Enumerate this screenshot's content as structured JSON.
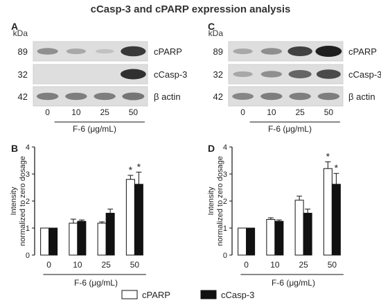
{
  "title": "cCasp-3 and cPARP expression analysis",
  "panel_labels": {
    "A": "A",
    "B": "B",
    "C": "C",
    "D": "D"
  },
  "blots": [
    {
      "unit": "kDa",
      "rows": [
        {
          "mw": "89",
          "name": "cPARP",
          "intensities": [
            0.35,
            0.2,
            0.05,
            0.85
          ]
        },
        {
          "mw": "32",
          "name": "cCasp-3",
          "intensities": [
            0.0,
            0.0,
            0.0,
            0.9
          ]
        },
        {
          "mw": "42",
          "name": "β actin",
          "intensities": [
            0.45,
            0.45,
            0.45,
            0.5
          ]
        }
      ],
      "lane_labels": [
        "0",
        "10",
        "25",
        "50"
      ],
      "xlabel": "F-6 (μg/mL)"
    },
    {
      "unit": "kDa",
      "rows": [
        {
          "mw": "89",
          "name": "cPARP",
          "intensities": [
            0.2,
            0.35,
            0.8,
            1.0
          ]
        },
        {
          "mw": "32",
          "name": "cCasp-3",
          "intensities": [
            0.2,
            0.35,
            0.6,
            0.75
          ]
        },
        {
          "mw": "42",
          "name": "β actin",
          "intensities": [
            0.4,
            0.45,
            0.45,
            0.45
          ]
        }
      ],
      "lane_labels": [
        "0",
        "10",
        "25",
        "50"
      ],
      "xlabel": "F-6 (μg/mL)"
    }
  ],
  "chart_data": [
    {
      "type": "bar",
      "panel": "B",
      "categories": [
        "0",
        "10",
        "25",
        "50"
      ],
      "series": [
        {
          "name": "cPARP",
          "values": [
            1.0,
            1.18,
            1.18,
            2.8
          ],
          "errors": [
            0.0,
            0.15,
            0.05,
            0.15
          ],
          "star": [
            false,
            false,
            false,
            true
          ]
        },
        {
          "name": "cCasp-3",
          "values": [
            1.0,
            1.25,
            1.55,
            2.62
          ],
          "errors": [
            0.0,
            0.05,
            0.15,
            0.45
          ],
          "star": [
            false,
            false,
            false,
            true
          ]
        }
      ],
      "xlabel": "F-6 (μg/mL)",
      "ylabel": "Intensity\nnormalized to zero dosage",
      "ylim": [
        0,
        4
      ],
      "yticks": [
        "0",
        "1",
        "2",
        "3",
        "4"
      ]
    },
    {
      "type": "bar",
      "panel": "D",
      "categories": [
        "0",
        "10",
        "25",
        "50"
      ],
      "series": [
        {
          "name": "cPARP",
          "values": [
            1.0,
            1.32,
            2.03,
            3.2
          ],
          "errors": [
            0.0,
            0.06,
            0.15,
            0.25
          ],
          "star": [
            false,
            false,
            false,
            true
          ]
        },
        {
          "name": "cCasp-3",
          "values": [
            1.0,
            1.25,
            1.55,
            2.62
          ],
          "errors": [
            0.0,
            0.05,
            0.15,
            0.4
          ],
          "star": [
            false,
            false,
            false,
            true
          ]
        }
      ],
      "xlabel": "F-6 (μg/mL)",
      "ylabel": "Intensity\nnormalized to zero dosage",
      "ylim": [
        0,
        4
      ],
      "yticks": [
        "0",
        "1",
        "2",
        "3",
        "4"
      ]
    }
  ],
  "legend": {
    "items": [
      "cPARP",
      "cCasp-3"
    ],
    "colors": [
      "#ffffff",
      "#111111"
    ]
  },
  "colors": {
    "bar_edge": "#111111",
    "axis": "#111111",
    "blot_bg": "#dedede"
  }
}
